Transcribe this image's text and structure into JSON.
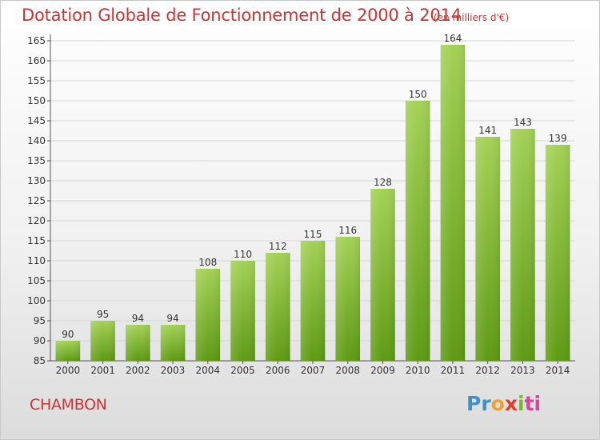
{
  "header": {
    "title": "Dotation Globale de Fonctionnement de 2000 à 2014",
    "subtitle": "(en milliers d'€)"
  },
  "footer": {
    "commune": "CHAMBON",
    "logo_parts": [
      "Pr",
      "o",
      "x",
      "i",
      "ti"
    ]
  },
  "colors": {
    "title": "#cc3333",
    "bar_top": "#a3d156",
    "bar_bottom": "#5e9a14",
    "grid": "#d6d6d6"
  },
  "chart_data": {
    "type": "bar",
    "categories": [
      "2000",
      "2001",
      "2002",
      "2003",
      "2004",
      "2005",
      "2006",
      "2007",
      "2008",
      "2009",
      "2010",
      "2011",
      "2012",
      "2013",
      "2014"
    ],
    "values": [
      90,
      95,
      94,
      94,
      108,
      110,
      112,
      115,
      116,
      128,
      150,
      164,
      141,
      143,
      139
    ],
    "ylim": [
      85,
      165
    ],
    "yticks": [
      85,
      90,
      95,
      100,
      105,
      110,
      115,
      120,
      125,
      130,
      135,
      140,
      145,
      150,
      155,
      160,
      165
    ],
    "grid": true,
    "title": "Dotation Globale de Fonctionnement de 2000 à 2014",
    "subtitle": "(en milliers d'€)",
    "xlabel": "",
    "ylabel": ""
  }
}
